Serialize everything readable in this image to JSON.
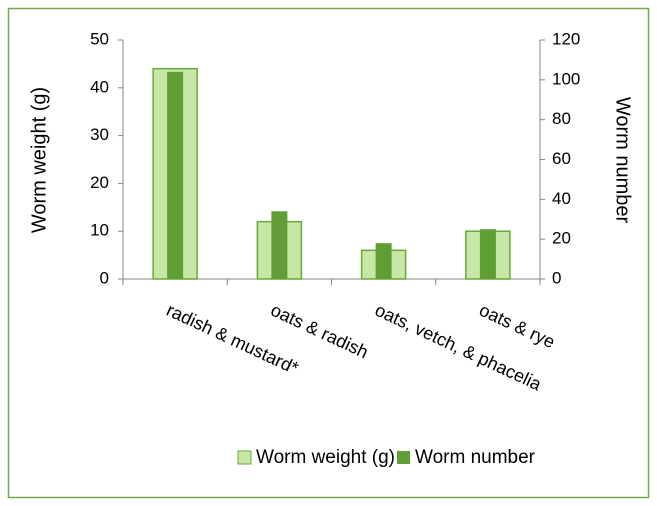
{
  "chart_data": {
    "type": "bar",
    "categories": [
      "radish & mustard*",
      "oats & radish",
      "oats, vetch, & phacelia",
      "oats & rye"
    ],
    "series": [
      {
        "name": "Worm weight (g)",
        "color": "#c6e7a5",
        "edge": "#6aa83a",
        "values": [
          44,
          12,
          6,
          10
        ]
      },
      {
        "name": "Worm number",
        "color": "#5f9e34",
        "values": [
          104,
          34,
          18,
          25
        ],
        "axis": "y2"
      }
    ],
    "y_label": "Worm weight (g)",
    "y2_label": "Worm number",
    "ylim": [
      0,
      50
    ],
    "yticks": [
      0,
      10,
      20,
      30,
      40,
      50
    ],
    "y2lim": [
      0,
      120
    ],
    "y2ticks": [
      0,
      20,
      40,
      60,
      80,
      100,
      120
    ],
    "legend": "bottom"
  }
}
